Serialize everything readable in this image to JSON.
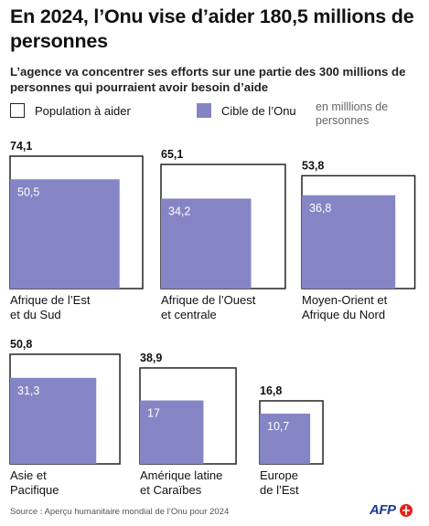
{
  "title": "En 2024, l’Onu vise d’aider 180,5 millions de personnes",
  "subtitle": "L’agence va concentrer ses efforts sur une partie des 300 millions de personnes qui pourraient avoir besoin d’aide",
  "legend": {
    "population": "Population à aider",
    "cible": "Cible de l’Onu",
    "unit": "en milllions de personnes"
  },
  "colors": {
    "outline": "#222222",
    "fill": "#8585c5",
    "label_light": "#ffffff"
  },
  "source": "Source : Aperçu humanitaire mondial de l’Onu pour 2024",
  "logo": "AFP",
  "chart_data": {
    "type": "nested-square",
    "series": [
      {
        "name": "Population à aider"
      },
      {
        "name": "Cible de l’Onu"
      }
    ],
    "regions": [
      {
        "label": [
          "Afrique de l’Est",
          "et du Sud"
        ],
        "population": 74.1,
        "cible": 50.5,
        "population_label": "74,1",
        "cible_label": "50,5"
      },
      {
        "label": [
          "Afrique de l’Ouest",
          "et centrale"
        ],
        "population": 65.1,
        "cible": 34.2,
        "population_label": "65,1",
        "cible_label": "34,2"
      },
      {
        "label": [
          "Moyen-Orient et",
          "Afrique du Nord"
        ],
        "population": 53.8,
        "cible": 36.8,
        "population_label": "53,8",
        "cible_label": "36,8"
      },
      {
        "label": [
          "Asie et",
          "Pacifique"
        ],
        "population": 50.8,
        "cible": 31.3,
        "population_label": "50,8",
        "cible_label": "31,3"
      },
      {
        "label": [
          "Amérique latine",
          "et Caraïbes"
        ],
        "population": 38.9,
        "cible": 17,
        "population_label": "38,9",
        "cible_label": "17"
      },
      {
        "label": [
          "Europe",
          "de l’Est"
        ],
        "population": 16.8,
        "cible": 10.7,
        "population_label": "16,8",
        "cible_label": "10,7"
      }
    ]
  }
}
